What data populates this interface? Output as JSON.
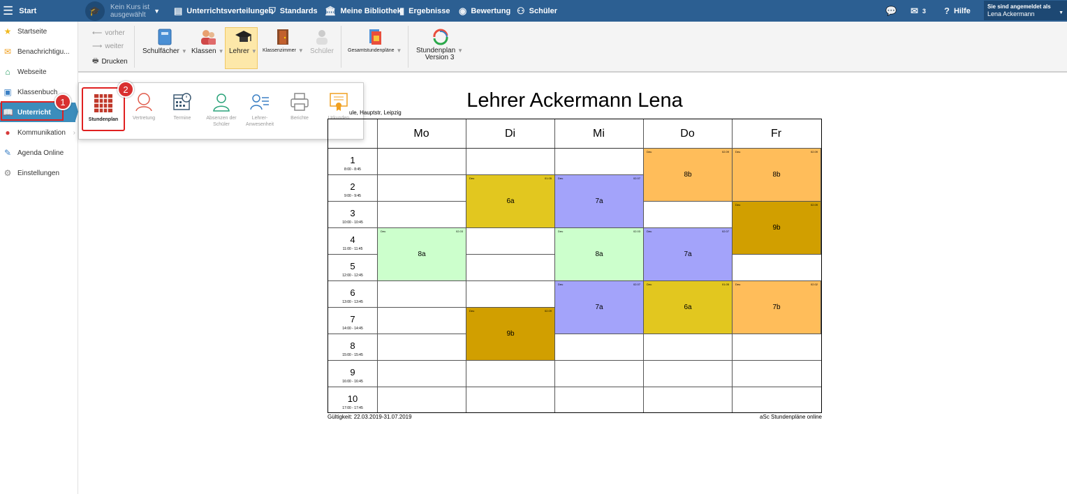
{
  "topbar": {
    "start_label": "Start",
    "course_line1": "Kein Kurs ist",
    "course_line2": "ausgewählt",
    "items": [
      {
        "label": "Unterrichtsverteilungen",
        "icon": "distribution-icon"
      },
      {
        "label": "Standards",
        "icon": "shield-icon"
      },
      {
        "label": "Meine Bibliothek",
        "icon": "library-icon"
      },
      {
        "label": "Ergebnisse",
        "icon": "bar-chart-icon"
      },
      {
        "label": "Bewertung",
        "icon": "rating-icon"
      },
      {
        "label": "Schüler",
        "icon": "students-icon"
      }
    ],
    "messages_count": "3",
    "help_label": "Hilfe",
    "login_label": "Sie sind angemeldet als",
    "user_name": "Lena Ackermann"
  },
  "sidebar": {
    "items": [
      {
        "label": "Startseite",
        "icon": "star-icon"
      },
      {
        "label": "Benachrichtigu...",
        "icon": "envelope-icon"
      },
      {
        "label": "Webseite",
        "icon": "house-icon"
      },
      {
        "label": "Klassenbuch",
        "icon": "book-icon"
      },
      {
        "label": "Unterricht",
        "icon": "open-book-icon"
      },
      {
        "label": "Kommunikation",
        "icon": "chat-icon"
      },
      {
        "label": "Agenda Online",
        "icon": "pencil-icon"
      },
      {
        "label": "Einstellungen",
        "icon": "gear-icon"
      }
    ]
  },
  "ribbon": {
    "prev_label": "vorher",
    "next_label": "weiter",
    "print_label": "Drucken",
    "buttons": [
      {
        "label": "Schulfächer"
      },
      {
        "label": "Klassen"
      },
      {
        "label": "Lehrer"
      },
      {
        "label": "Klassenzimmer"
      },
      {
        "label": "Schüler"
      },
      {
        "label": "Gesamtstundenpläne"
      }
    ],
    "version_line1": "Stundenplan",
    "version_line2": "Version 3"
  },
  "submenu": {
    "items": [
      {
        "label": "Stundenplan"
      },
      {
        "label": "Vertretung"
      },
      {
        "label": "Termine"
      },
      {
        "label": "Absenzen der Schüler"
      },
      {
        "label": "Lehrer-Anwesenheit"
      },
      {
        "label": "Berichte"
      },
      {
        "label": "Urkunden"
      }
    ]
  },
  "badges": [
    "1",
    "2"
  ],
  "timetable": {
    "title": "Lehrer Ackermann Lena",
    "school": "ule, Hauptstr, Leipzig",
    "days": [
      "Mo",
      "Di",
      "Mi",
      "Do",
      "Fr"
    ],
    "periods": [
      {
        "n": "1",
        "time": "8:00 - 8:45"
      },
      {
        "n": "2",
        "time": "9:00 - 9:45"
      },
      {
        "n": "3",
        "time": "10:00 - 10:45"
      },
      {
        "n": "4",
        "time": "11:00 - 11:45"
      },
      {
        "n": "5",
        "time": "12:00 - 12:45"
      },
      {
        "n": "6",
        "time": "13:00 - 13:45"
      },
      {
        "n": "7",
        "time": "14:00 - 14:45"
      },
      {
        "n": "8",
        "time": "15:00 - 15:45"
      },
      {
        "n": "9",
        "time": "16:00 - 16:45"
      },
      {
        "n": "10",
        "time": "17:00 - 17:45"
      }
    ],
    "lessons": [
      {
        "day": 3,
        "start": 1,
        "len": 2,
        "cls": "8b",
        "color": "#ffbd5a",
        "tl": "Deu",
        "tr": "02.09"
      },
      {
        "day": 4,
        "start": 1,
        "len": 2,
        "cls": "8b",
        "color": "#ffbd5a",
        "tl": "Deu",
        "tr": "02.09"
      },
      {
        "day": 1,
        "start": 2,
        "len": 2,
        "cls": "6a",
        "color": "#e2c71f",
        "tl": "Deu",
        "tr": "01.05"
      },
      {
        "day": 2,
        "start": 2,
        "len": 2,
        "cls": "7a",
        "color": "#a3a3fa",
        "tl": "Deu",
        "tr": "02.07"
      },
      {
        "day": 4,
        "start": 3,
        "len": 2,
        "cls": "9b",
        "color": "#d19f00",
        "tl": "Deu",
        "tr": "02.09"
      },
      {
        "day": 0,
        "start": 4,
        "len": 2,
        "cls": "8a",
        "color": "#ccffcc",
        "tl": "Deu",
        "tr": "02.03"
      },
      {
        "day": 2,
        "start": 4,
        "len": 2,
        "cls": "8a",
        "color": "#ccffcc",
        "tl": "Deu",
        "tr": "02.03"
      },
      {
        "day": 3,
        "start": 4,
        "len": 2,
        "cls": "7a",
        "color": "#a3a3fa",
        "tl": "Deu",
        "tr": "02.07"
      },
      {
        "day": 2,
        "start": 6,
        "len": 2,
        "cls": "7a",
        "color": "#a3a3fa",
        "tl": "Deu",
        "tr": "02.07"
      },
      {
        "day": 3,
        "start": 6,
        "len": 2,
        "cls": "6a",
        "color": "#e2c71f",
        "tl": "Deu",
        "tr": "01.05"
      },
      {
        "day": 4,
        "start": 6,
        "len": 2,
        "cls": "7b",
        "color": "#ffbd5a",
        "tl": "Deu",
        "tr": "02.02"
      },
      {
        "day": 1,
        "start": 7,
        "len": 2,
        "cls": "9b",
        "color": "#d19f00",
        "tl": "Deu",
        "tr": "02.09"
      }
    ],
    "validity": "Gültigkeit: 22.03.2019-31.07.2019",
    "credit": "aSc Stundenpläne online"
  }
}
